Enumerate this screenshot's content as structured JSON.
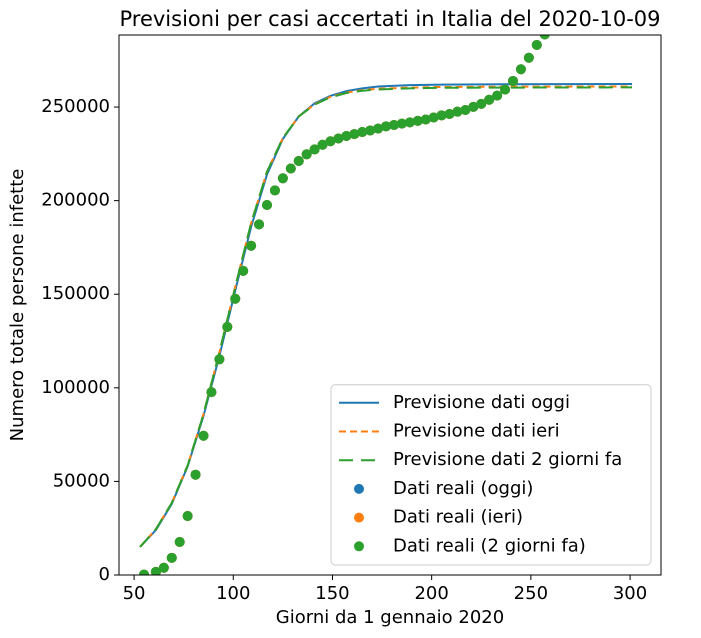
{
  "chart_data": {
    "type": "line",
    "title": "Previsioni per casi accertati in Italia del 2020-10-09",
    "x_label": "Giorni da 1 gennaio 2020",
    "y_label": "Numero totale persone infette",
    "xlim": [
      42.4,
      315.6
    ],
    "ylim": [
      0,
      288500
    ],
    "xticks": [
      50,
      100,
      150,
      200,
      250,
      300
    ],
    "yticks": [
      0,
      50000,
      100000,
      150000,
      200000,
      250000
    ],
    "legend": "lower right",
    "series": [
      {
        "name": "Previsione dati oggi",
        "kind": "line",
        "dash": "solid",
        "color": "#1f77b4",
        "x": [
          53,
          61,
          69,
          77,
          85,
          93,
          101,
          109,
          117,
          125,
          133,
          141,
          149,
          157,
          165,
          173,
          189,
          205,
          237,
          301
        ],
        "values": [
          15000,
          24000,
          38000,
          58000,
          85000,
          117000,
          152000,
          186000,
          214000,
          233000,
          245000,
          252000,
          256000,
          258500,
          260000,
          261000,
          261700,
          262000,
          262200,
          262300
        ]
      },
      {
        "name": "Previsione dati ieri",
        "kind": "line",
        "dash": "dashed",
        "color": "#ff7f0e",
        "x": [
          53,
          61,
          69,
          77,
          85,
          93,
          101,
          109,
          117,
          125,
          133,
          141,
          149,
          157,
          165,
          173,
          189,
          205,
          237,
          301
        ],
        "values": [
          15000,
          24500,
          38500,
          58500,
          86000,
          119000,
          154000,
          188000,
          215500,
          233500,
          245000,
          251500,
          255500,
          257800,
          259000,
          259800,
          260400,
          260700,
          260900,
          261000
        ]
      },
      {
        "name": "Previsione dati 2 giorni fa",
        "kind": "line",
        "dash": "longdash",
        "color": "#2ca02c",
        "x": [
          53,
          61,
          69,
          77,
          85,
          93,
          101,
          109,
          117,
          125,
          133,
          141,
          149,
          157,
          165,
          173,
          189,
          205,
          237,
          301
        ],
        "values": [
          15000,
          24500,
          38500,
          58500,
          86000,
          119000,
          154000,
          188000,
          215500,
          233500,
          245000,
          251300,
          255200,
          257500,
          258700,
          259400,
          260000,
          260300,
          260400,
          260500
        ]
      },
      {
        "name": "Dati reali (oggi)",
        "kind": "scatter",
        "color": "#1f77b4",
        "x": [
          55,
          61,
          65,
          69,
          73,
          77,
          81,
          85,
          89,
          93,
          97,
          101,
          105,
          109,
          113,
          117,
          121,
          125,
          129,
          133,
          137,
          141,
          145,
          149,
          153,
          157,
          161,
          165,
          169,
          173,
          177,
          181,
          185,
          189,
          193,
          197,
          201,
          205,
          209,
          213,
          217,
          221,
          225,
          229,
          233,
          237,
          241,
          245,
          249,
          253,
          257
        ],
        "values": [
          229,
          1694,
          3858,
          9172,
          17660,
          31506,
          53578,
          74386,
          97689,
          115242,
          132547,
          147577,
          162488,
          175925,
          187327,
          197675,
          205463,
          211938,
          217185,
          221216,
          224760,
          227364,
          229858,
          231732,
          233197,
          234531,
          235561,
          236651,
          237500,
          238499,
          239706,
          240436,
          241184,
          241819,
          242639,
          243344,
          244434,
          245590,
          246286,
          247537,
          248419,
          250103,
          251713,
          253915,
          256118,
          259345,
          263949,
          270189,
          276338,
          283180,
          288761
        ]
      },
      {
        "name": "Dati reali (ieri)",
        "kind": "scatter",
        "color": "#ff7f0e",
        "x": [
          55,
          61,
          65,
          69,
          73,
          77,
          81,
          85,
          89,
          93,
          97,
          101,
          105,
          109,
          113,
          117,
          121,
          125,
          129,
          133,
          137,
          141,
          145,
          149,
          153,
          157,
          161,
          165,
          169,
          173,
          177,
          181,
          185,
          189,
          193,
          197,
          201,
          205,
          209,
          213,
          217,
          221,
          225,
          229,
          233,
          237,
          241,
          245,
          249,
          253,
          257
        ],
        "values": [
          229,
          1694,
          3858,
          9172,
          17660,
          31506,
          53578,
          74386,
          97689,
          115242,
          132547,
          147577,
          162488,
          175925,
          187327,
          197675,
          205463,
          211938,
          217185,
          221216,
          224760,
          227364,
          229858,
          231732,
          233197,
          234531,
          235561,
          236651,
          237500,
          238499,
          239706,
          240436,
          241184,
          241819,
          242639,
          243344,
          244434,
          245590,
          246286,
          247537,
          248419,
          250103,
          251713,
          253915,
          256118,
          259345,
          263949,
          270189,
          276338,
          283180,
          288761
        ]
      },
      {
        "name": "Dati reali (2 giorni fa)",
        "kind": "scatter",
        "color": "#2ca02c",
        "x": [
          55,
          61,
          65,
          69,
          73,
          77,
          81,
          85,
          89,
          93,
          97,
          101,
          105,
          109,
          113,
          117,
          121,
          125,
          129,
          133,
          137,
          141,
          145,
          149,
          153,
          157,
          161,
          165,
          169,
          173,
          177,
          181,
          185,
          189,
          193,
          197,
          201,
          205,
          209,
          213,
          217,
          221,
          225,
          229,
          233,
          237,
          241,
          245,
          249,
          253,
          257
        ],
        "values": [
          229,
          1694,
          3858,
          9172,
          17660,
          31506,
          53578,
          74386,
          97689,
          115242,
          132547,
          147577,
          162488,
          175925,
          187327,
          197675,
          205463,
          211938,
          217185,
          221216,
          224760,
          227364,
          229858,
          231732,
          233197,
          234531,
          235561,
          236651,
          237500,
          238499,
          239706,
          240436,
          241184,
          241819,
          242639,
          243344,
          244434,
          245590,
          246286,
          247537,
          248419,
          250103,
          251713,
          253915,
          256118,
          259345,
          263949,
          270189,
          276338,
          283180,
          288761
        ]
      }
    ]
  }
}
